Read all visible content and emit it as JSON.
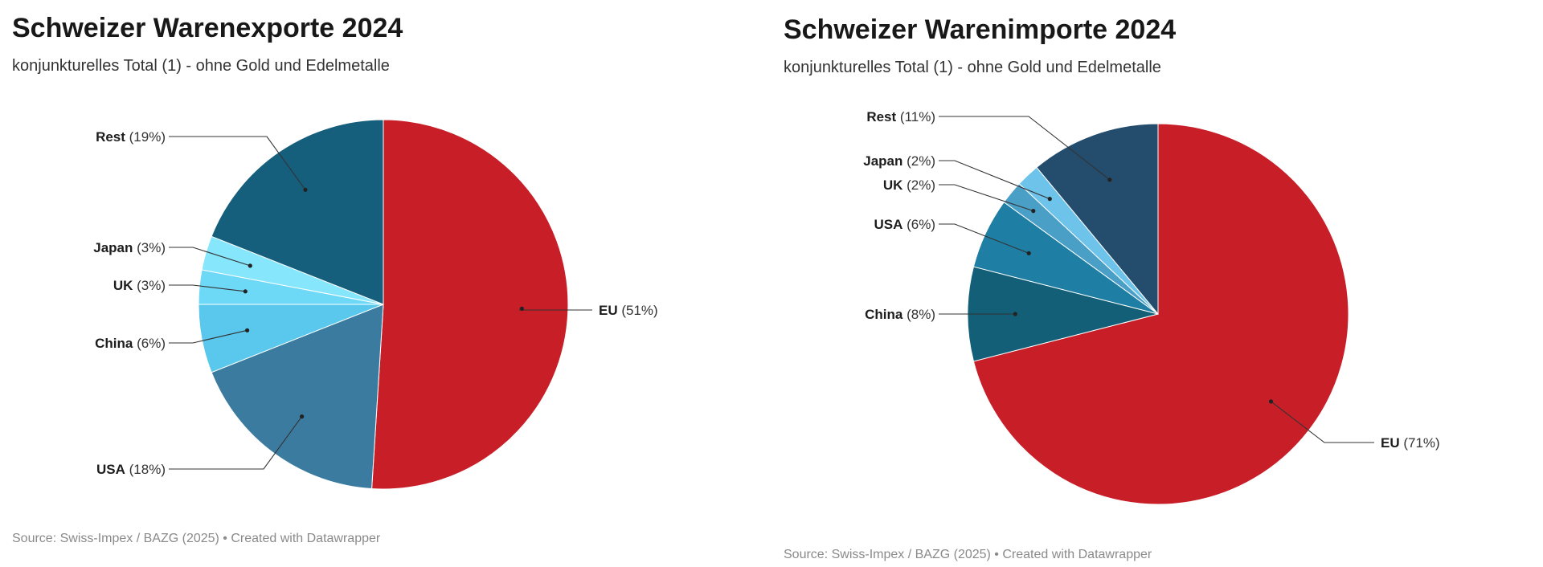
{
  "charts": [
    {
      "title": "Schweizer Warenexporte 2024",
      "subtitle": "konjunkturelles Total (1) - ohne Gold und Edelmetalle",
      "source": "Source: Swiss-Impex / BAZG (2025) • Created with Datawrapper"
    },
    {
      "title": "Schweizer Warenimporte 2024",
      "subtitle": "konjunkturelles Total (1) - ohne Gold und Edelmetalle",
      "source": "Source: Swiss-Impex / BAZG (2025) • Created with Datawrapper"
    }
  ],
  "chart_data": [
    {
      "type": "pie",
      "title": "Schweizer Warenexporte 2024",
      "subtitle": "konjunkturelles Total (1) - ohne Gold und Edelmetalle",
      "unit": "%",
      "slices": [
        {
          "name": "EU",
          "value": 51,
          "label": "(51%)",
          "color": "#c81e28"
        },
        {
          "name": "USA",
          "value": 18,
          "label": "(18%)",
          "color": "#3b7ba0"
        },
        {
          "name": "China",
          "value": 6,
          "label": "(6%)",
          "color": "#5ac8ec"
        },
        {
          "name": "UK",
          "value": 3,
          "label": "(3%)",
          "color": "#6ed8f7"
        },
        {
          "name": "Japan",
          "value": 3,
          "label": "(3%)",
          "color": "#86e6fc"
        },
        {
          "name": "Rest",
          "value": 19,
          "label": "(19%)",
          "color": "#155f7c"
        }
      ]
    },
    {
      "type": "pie",
      "title": "Schweizer Warenimporte 2024",
      "subtitle": "konjunkturelles Total (1) - ohne Gold und Edelmetalle",
      "unit": "%",
      "slices": [
        {
          "name": "EU",
          "value": 71,
          "label": "(71%)",
          "color": "#c81e28"
        },
        {
          "name": "China",
          "value": 8,
          "label": "(8%)",
          "color": "#145f78"
        },
        {
          "name": "USA",
          "value": 6,
          "label": "(6%)",
          "color": "#1f7ea3"
        },
        {
          "name": "UK",
          "value": 2,
          "label": "(2%)",
          "color": "#4a9fc7"
        },
        {
          "name": "Japan",
          "value": 2,
          "label": "(2%)",
          "color": "#6ec3ea"
        },
        {
          "name": "Rest",
          "value": 11,
          "label": "(11%)",
          "color": "#244c6c"
        }
      ]
    }
  ]
}
